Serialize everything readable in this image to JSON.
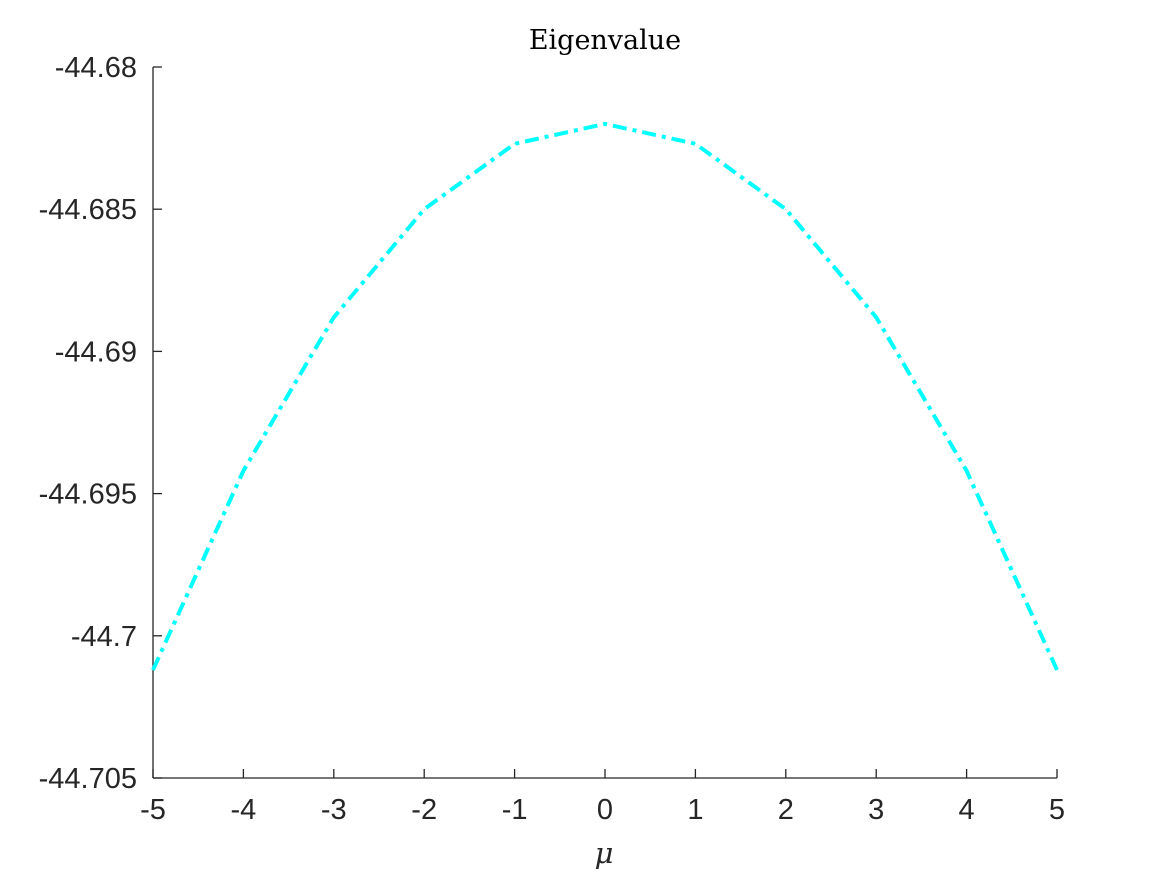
{
  "chart_data": {
    "type": "line",
    "title": "Eigenvalue",
    "xlabel": "μ",
    "ylabel": "",
    "xlim": [
      -5,
      5
    ],
    "ylim": [
      -44.705,
      -44.68
    ],
    "x_ticks": [
      -5,
      -4,
      -3,
      -2,
      -1,
      0,
      1,
      2,
      3,
      4,
      5
    ],
    "x_tick_labels": [
      "-5",
      "-4",
      "-3",
      "-2",
      "-1",
      "0",
      "1",
      "2",
      "3",
      "4",
      "5"
    ],
    "y_ticks": [
      -44.68,
      -44.685,
      -44.69,
      -44.695,
      -44.7,
      -44.705
    ],
    "y_tick_labels": [
      "-44.68",
      "-44.685",
      "-44.69",
      "-44.695",
      "-44.7",
      "-44.705"
    ],
    "grid": false,
    "box": false,
    "series": [
      {
        "color": "#00ffff",
        "line_style": "dash-dot",
        "x": [
          -5,
          -4,
          -3,
          -2,
          -1,
          0,
          1,
          2,
          3,
          4,
          5
        ],
        "y": [
          -44.7012,
          -44.6942,
          -44.6888,
          -44.685,
          -44.6827,
          -44.682,
          -44.6827,
          -44.685,
          -44.6888,
          -44.6942,
          -44.7012
        ]
      }
    ]
  }
}
